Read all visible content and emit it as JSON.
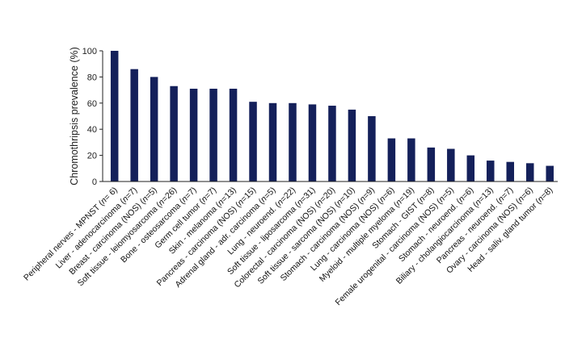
{
  "chart_data": {
    "type": "bar",
    "title": "",
    "xlabel": "",
    "ylabel": "Chromothripsis prevalence (%)",
    "ylim": [
      0,
      100
    ],
    "yticks": [
      0,
      20,
      40,
      60,
      80,
      100
    ],
    "grid": false,
    "bar_color": "#14205a",
    "categories": [
      {
        "text": "Peripheral nerves - MPNST (",
        "n": "n",
        "rest": "= 6)"
      },
      {
        "text": "Liver - adenocarcinoma (",
        "n": "n",
        "rest": "=7)"
      },
      {
        "text": "Breast - carcinoma (NOS) (",
        "n": "n",
        "rest": "=5)"
      },
      {
        "text": "Soft tissue - leiomyosarcoma (",
        "n": "n",
        "rest": "=26)"
      },
      {
        "text": "Bone - osteosarcoma (",
        "n": "n",
        "rest": "=7)"
      },
      {
        "text": "Germ cell tumor (",
        "n": "n",
        "rest": "=7)"
      },
      {
        "text": "Skin - melanoma (",
        "n": "n",
        "rest": "=13)"
      },
      {
        "text": "Pancreas - carcinoma (NOS) (",
        "n": "n",
        "rest": "=15)"
      },
      {
        "text": "Adrenal gland - adr. carcinoma (",
        "n": "n",
        "rest": "=5)"
      },
      {
        "text": "Lung - neuroend. (",
        "n": "n",
        "rest": "=22)"
      },
      {
        "text": "Soft tissue - liposarcoma (",
        "n": "n",
        "rest": "=31)"
      },
      {
        "text": "Colorectal - carcinoma (NOS) (",
        "n": "n",
        "rest": "=20)"
      },
      {
        "text": "Soft tissue - sarcoma (NOS) (",
        "n": "n",
        "rest": "=10)"
      },
      {
        "text": "Stomach - carcinoma (NOS) (",
        "n": "n",
        "rest": "=9)"
      },
      {
        "text": "Lung - carcinoma (NOS) (",
        "n": "n",
        "rest": "=6)"
      },
      {
        "text": "Myeloid - multiple myeloma (",
        "n": "n",
        "rest": "=19)"
      },
      {
        "text": "Stomach - GIST (",
        "n": "n",
        "rest": "=8)"
      },
      {
        "text": "Female urogenital - carcinoma (NOS) (",
        "n": "n",
        "rest": "=5)"
      },
      {
        "text": "Stomach - neuroend. (",
        "n": "n",
        "rest": "=6)"
      },
      {
        "text": "Biliary - cholangiocarcinoma (",
        "n": "n",
        "rest": "=13)"
      },
      {
        "text": "Pancreas - neuroend. (",
        "n": "n",
        "rest": "=7)"
      },
      {
        "text": "Ovary - carcinoma (NOS) (",
        "n": "n",
        "rest": "=6)"
      },
      {
        "text": "Head - saliv. gland tumor (",
        "n": "n",
        "rest": "=8)"
      }
    ],
    "values": [
      100,
      86,
      80,
      73,
      71,
      71,
      71,
      61,
      60,
      60,
      59,
      58,
      55,
      50,
      33,
      33,
      26,
      25,
      20,
      16,
      15,
      14,
      12
    ]
  }
}
